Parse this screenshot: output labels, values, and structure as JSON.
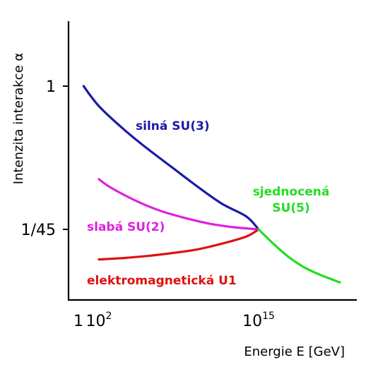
{
  "chart_data": {
    "type": "line",
    "xlabel": "Energie E [GeV]",
    "ylabel": "Intenzita interakce α",
    "xscale": "log",
    "yticks": [
      "1",
      "1/45"
    ],
    "xticks": [
      {
        "base": "1",
        "sup": ""
      },
      {
        "base": "10",
        "sup": "2"
      },
      {
        "base": "10",
        "sup": "15"
      }
    ],
    "grid": false,
    "series": [
      {
        "name": "silná SU(3)",
        "color": "#1a1aa8",
        "x_log10": [
          0.5,
          2,
          4,
          6,
          8,
          10,
          12,
          14,
          15
        ],
        "y_rel": [
          1.0,
          0.86,
          0.7,
          0.56,
          0.43,
          0.3,
          0.18,
          0.09,
          0.0
        ]
      },
      {
        "name": "slabá SU(2)",
        "color": "#e020e0",
        "x_log10": [
          2,
          3,
          5,
          7,
          9,
          11,
          13,
          15
        ],
        "y_rel": [
          0.35,
          0.29,
          0.2,
          0.13,
          0.08,
          0.04,
          0.015,
          0.0
        ]
      },
      {
        "name": "elektromagnetická U1",
        "color": "#dd1111",
        "x_log10": [
          2,
          4,
          6,
          8,
          10,
          12,
          14,
          15
        ],
        "y_rel": [
          -0.21,
          -0.2,
          -0.185,
          -0.165,
          -0.14,
          -0.1,
          -0.05,
          0.0
        ]
      },
      {
        "name": "sjednocená SU(5)",
        "color": "#22dd22",
        "x_log10": [
          15,
          16,
          17,
          18,
          19,
          20.5
        ],
        "y_rel": [
          0.0,
          -0.1,
          -0.19,
          -0.26,
          -0.31,
          -0.37
        ]
      }
    ],
    "labels": [
      {
        "lines": [
          "silná SU(3)"
        ],
        "series": 0
      },
      {
        "lines": [
          "slabá SU(2)"
        ],
        "series": 1
      },
      {
        "lines": [
          "elektromagnetická U1"
        ],
        "series": 2
      },
      {
        "lines": [
          "sjednocená",
          "SU(5)"
        ],
        "series": 3
      }
    ]
  }
}
